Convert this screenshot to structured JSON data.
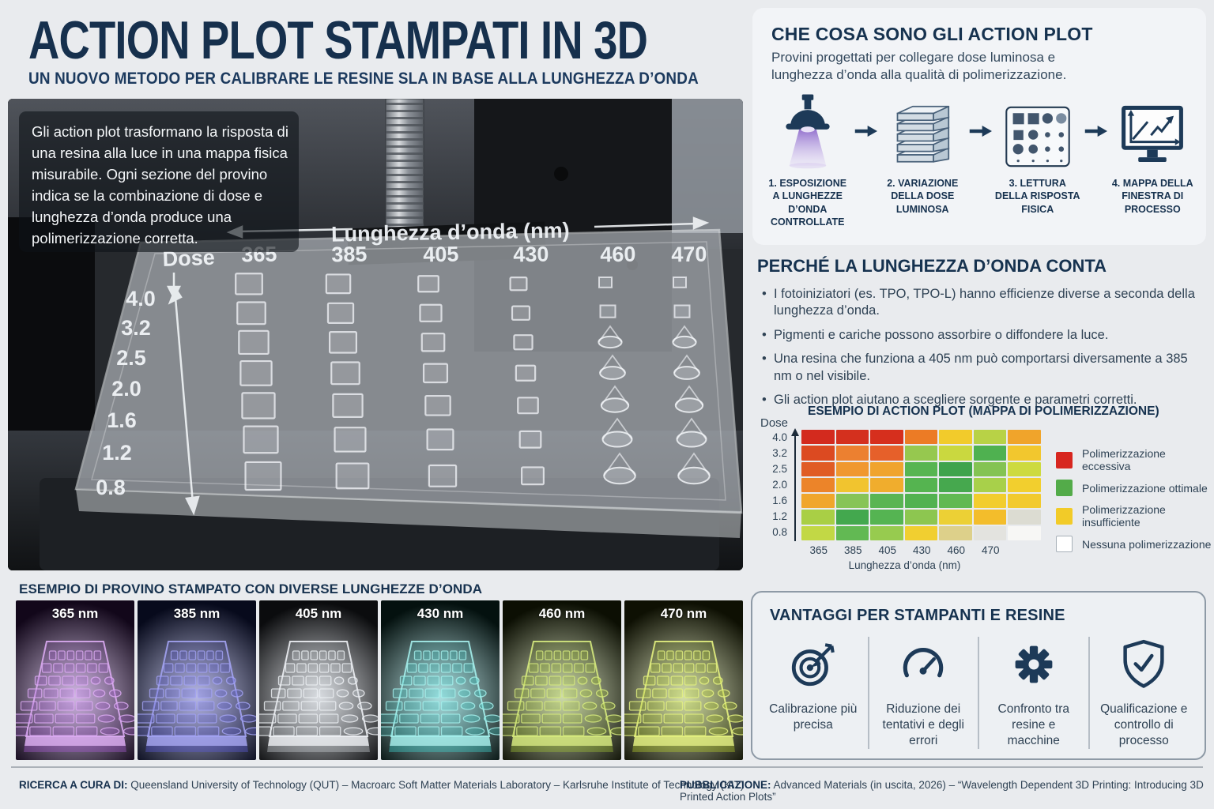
{
  "header": {
    "title": "ACTION PLOT STAMPATI IN 3D",
    "subtitle": "UN NUOVO METODO PER CALIBRARE LE RESINE SLA IN BASE ALLA LUNGHEZZA D’ONDA"
  },
  "photo": {
    "caption_lines": [
      "Gli action plot trasformano la risposta di",
      "una resina alla luce in una mappa fisica",
      "misurabile. Ogni sezione del provino",
      "indica se la combinazione di dose e",
      "lunghezza d’onda produce una",
      "polimerizzazione corretta."
    ],
    "dose_label": "Dose",
    "wavelength_label": "Lunghezza d’onda (nm)",
    "wavelengths": [
      "365",
      "385",
      "405",
      "430",
      "460",
      "470"
    ],
    "dose_values": [
      "4.0",
      "3.2",
      "2.5",
      "2.0",
      "1.6",
      "1.2",
      "0.8"
    ]
  },
  "what_section": {
    "heading": "CHE COSA SONO GLI ACTION PLOT",
    "intro": "Provini progettati per collegare dose luminosa e lunghezza d’onda alla qualità di polimerizzazione.",
    "steps": [
      {
        "icon": "uv-lamp",
        "label": "1. ESPOSIZIONE\nA LUNGHEZZE\nD’ONDA\nCONTROLLATE"
      },
      {
        "icon": "layer-stack",
        "label": "2. VARIAZIONE\nDELLA DOSE\nLUMINOSA"
      },
      {
        "icon": "sample-plate",
        "label": "3. LETTURA\nDELLA RISPOSTA\nFISICA"
      },
      {
        "icon": "process-monitor",
        "label": "4. MAPPA DELLA\nFINESTRA DI\nPROCESSO"
      }
    ]
  },
  "why_section": {
    "heading": "PERCHÉ LA LUNGHEZZA D’ONDA CONTA",
    "bullets": [
      "I fotoiniziatori (es. TPO, TPO-L) hanno efficienze diverse a seconda della lunghezza d’onda.",
      "Pigmenti e cariche possono assorbire o diffondere la luce.",
      "Una resina che funziona a 405 nm può comportarsi diversamente a 385 nm o nel visibile.",
      "Gli action plot aiutano a scegliere sorgente e parametri corretti."
    ]
  },
  "chart_data": {
    "type": "heatmap",
    "title": "ESEMPIO DI ACTION PLOT (MAPPA DI POLIMERIZZAZIONE)",
    "xlabel": "Lunghezza d’onda (nm)",
    "ylabel": "Dose",
    "x_ticks": [
      "365",
      "385",
      "405",
      "430",
      "460",
      "470"
    ],
    "note": "la settima colonna a destra non ha etichetta",
    "y_ticks_top_to_bottom": [
      "4.0",
      "3.2",
      "2.5",
      "2.0",
      "1.6",
      "1.2",
      "0.8"
    ],
    "legend": [
      {
        "color": "#d7261f",
        "label": "Polimerizzazione eccessiva"
      },
      {
        "color": "#53ab49",
        "label": "Polimerizzazione ottimale"
      },
      {
        "color": "#f2cb28",
        "label": "Polimerizzazione insufficiente"
      },
      {
        "color": "#ffffff",
        "label": "Nessuna polimerizzazione"
      }
    ],
    "cell_colors_rows_top_to_bottom": [
      [
        "#d32a1e",
        "#d4301e",
        "#d62f1d",
        "#ec7b25",
        "#f2cb2b",
        "#b8d246",
        "#f0a42b"
      ],
      [
        "#dc4a21",
        "#ec8030",
        "#e6602a",
        "#96c84f",
        "#cad83f",
        "#4fb150",
        "#f2c72e"
      ],
      [
        "#e05c25",
        "#f0982f",
        "#f0a42e",
        "#57b551",
        "#3fa34c",
        "#84c353",
        "#cdda3f"
      ],
      [
        "#ec8429",
        "#f1c42f",
        "#f0ad2d",
        "#55b450",
        "#46a84e",
        "#a8d04a",
        "#f2cf2e"
      ],
      [
        "#f0a62c",
        "#87c457",
        "#5ab553",
        "#52b250",
        "#61b952",
        "#f2cd2d",
        "#f2ca2e"
      ],
      [
        "#a9cf45",
        "#43a84e",
        "#55b452",
        "#8dc650",
        "#ecd035",
        "#f3bd2b",
        "#dcdcd2"
      ],
      [
        "#c2d845",
        "#62b953",
        "#97cb4f",
        "#f1cf30",
        "#ddd08a",
        "#e3e3df",
        "#f7f7f5"
      ]
    ],
    "cell_states_rows_top_to_bottom": [
      [
        "eccessiva",
        "eccessiva",
        "eccessiva",
        "eccessiva",
        "insufficiente",
        "insufficiente",
        "insufficiente"
      ],
      [
        "eccessiva",
        "eccessiva",
        "eccessiva",
        "ottimale",
        "insufficiente",
        "ottimale",
        "insufficiente"
      ],
      [
        "eccessiva",
        "eccessiva",
        "eccessiva",
        "ottimale",
        "ottimale",
        "ottimale",
        "insufficiente"
      ],
      [
        "eccessiva",
        "insufficiente",
        "eccessiva",
        "ottimale",
        "ottimale",
        "ottimale",
        "insufficiente"
      ],
      [
        "insufficiente",
        "ottimale",
        "ottimale",
        "ottimale",
        "ottimale",
        "insufficiente",
        "insufficiente"
      ],
      [
        "insufficiente",
        "ottimale",
        "ottimale",
        "ottimale",
        "insufficiente",
        "insufficiente",
        "nessuna"
      ],
      [
        "insufficiente",
        "ottimale",
        "ottimale",
        "insufficiente",
        "insufficiente",
        "nessuna",
        "nessuna"
      ]
    ]
  },
  "samples_section": {
    "heading": "ESEMPIO DI PROVINO STAMPATO CON DIVERSE LUNGHEZZE D’ONDA",
    "tiles": [
      {
        "label": "365 nm",
        "glow": "#a55ad0",
        "stroke": "#dcabf2",
        "bg": "#12071a"
      },
      {
        "label": "385 nm",
        "glow": "#5a5ad6",
        "stroke": "#a3a3f2",
        "bg": "#070a1c"
      },
      {
        "label": "405 nm",
        "glow": "#c7ccd3",
        "stroke": "#eef1f5",
        "bg": "#0b0c0e"
      },
      {
        "label": "430 nm",
        "glow": "#3ecfca",
        "stroke": "#a5f0ec",
        "bg": "#04110f"
      },
      {
        "label": "460 nm",
        "glow": "#9ebe34",
        "stroke": "#d6ea7e",
        "bg": "#0c0f03"
      },
      {
        "label": "470 nm",
        "glow": "#b3cb2e",
        "stroke": "#e4f180",
        "bg": "#0e1003"
      }
    ]
  },
  "benefits_section": {
    "heading": "VANTAGGI PER STAMPANTI E RESINE",
    "items": [
      {
        "icon": "target",
        "label": "Calibrazione più precisa"
      },
      {
        "icon": "gauge",
        "label": "Riduzione dei tentativi e degli errori"
      },
      {
        "icon": "gear",
        "label": "Confronto tra resine e macchine"
      },
      {
        "icon": "shield-check",
        "label": "Qualificazione e controllo di processo"
      }
    ]
  },
  "footer": {
    "left_label": "RICERCA A CURA DI:",
    "left_text": "Queensland University of Technology (QUT) – Macroarc Soft Matter Materials Laboratory – Karlsruhe Institute of Technology (KIT)",
    "right_label": "PUBBLICAZIONE:",
    "right_text": "Advanced Materials (in uscita, 2026) – “Wavelength Dependent 3D Printing: Introducing 3D Printed Action Plots”"
  },
  "colors": {
    "accent_navy": "#16304d",
    "page_background": "#e9ebee",
    "card_background": "#f2f4f7"
  }
}
